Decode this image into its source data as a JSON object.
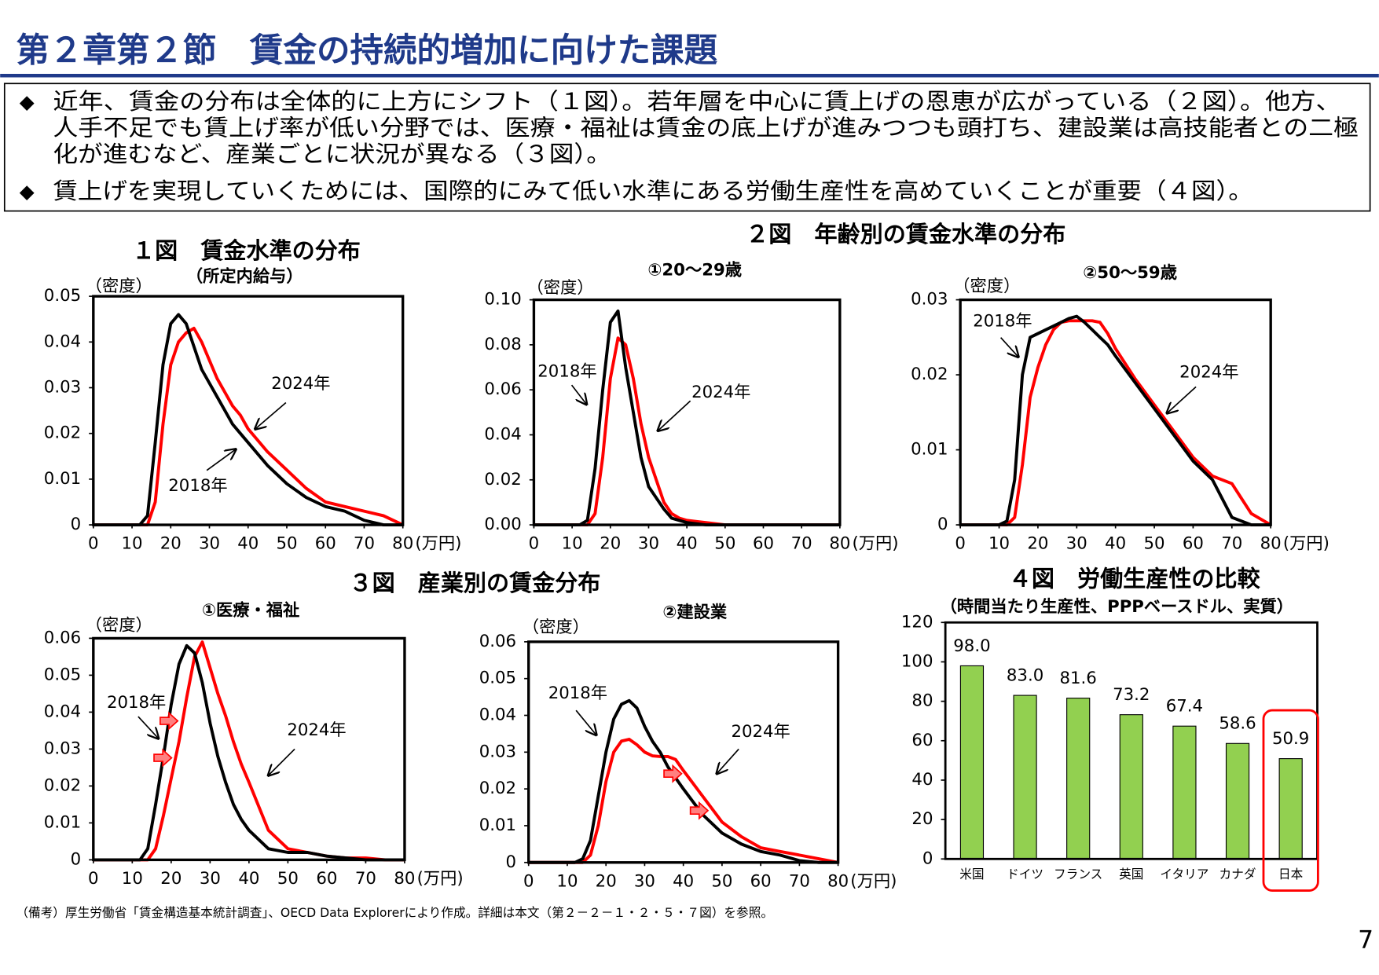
{
  "header": {
    "title": "第２章第２節　賃金の持続的増加に向けた課題"
  },
  "bullets": [
    [
      "近年、賃金の分布は全体的に上方にシフト（１図）。若年層を中心に賃上げの恩恵が広がっている（２図）。他方、",
      "人手不足でも賃上げ率が低い分野では、医療・福祉は賃金の底上げが進みつつも頭打ち、建設業は高技能者との二極",
      "化が進むなど、産業ごとに状況が異なる（３図）。"
    ],
    [
      "賃上げを実現していくためには、国際的にみて低い水準にある労働生産性を高めていくことが重要（４図）。"
    ]
  ],
  "figure_titles": [
    "２図　年齢別の賃金水準の分布",
    "３図　産業別の賃金分布"
  ],
  "chart_data": [
    {
      "type": "line",
      "title": "１図　賃金水準の分布",
      "subtitle": "（所定内給与）",
      "ylabel": "（密度）",
      "xlabel": "(万円)",
      "x": [
        0,
        10,
        12,
        14,
        16,
        18,
        20,
        22,
        24,
        26,
        28,
        30,
        32,
        34,
        36,
        38,
        40,
        45,
        50,
        55,
        60,
        65,
        70,
        75,
        80
      ],
      "xlim": [
        0,
        80
      ],
      "xticks": [
        0,
        10,
        20,
        30,
        40,
        50,
        60,
        70,
        80
      ],
      "ylim": [
        0,
        0.05
      ],
      "yticks": [
        0,
        0.01,
        0.02,
        0.03,
        0.04,
        0.05
      ],
      "series": [
        {
          "name": "2018年",
          "color": "#000000",
          "values": [
            0,
            0,
            0,
            0.002,
            0.018,
            0.035,
            0.044,
            0.046,
            0.044,
            0.039,
            0.034,
            0.031,
            0.028,
            0.025,
            0.022,
            0.02,
            0.018,
            0.013,
            0.009,
            0.006,
            0.004,
            0.003,
            0.001,
            0,
            0
          ]
        },
        {
          "name": "2024年",
          "color": "#ff0000",
          "values": [
            0,
            0,
            0,
            0,
            0.005,
            0.022,
            0.035,
            0.04,
            0.042,
            0.043,
            0.04,
            0.036,
            0.032,
            0.029,
            0.026,
            0.024,
            0.021,
            0.016,
            0.012,
            0.008,
            0.005,
            0.004,
            0.003,
            0.002,
            0
          ]
        }
      ]
    },
    {
      "type": "line",
      "title": "①20～29歳",
      "ylabel": "（密度）",
      "xlabel": "(万円)",
      "x": [
        0,
        10,
        12,
        14,
        16,
        18,
        20,
        22,
        24,
        26,
        28,
        30,
        32,
        34,
        36,
        38,
        40,
        45,
        50,
        55,
        60,
        65,
        70,
        75,
        80
      ],
      "xlim": [
        0,
        80
      ],
      "xticks": [
        0,
        10,
        20,
        30,
        40,
        50,
        60,
        70,
        80
      ],
      "ylim": [
        0,
        0.1
      ],
      "yticks": [
        {
          "value": 0,
          "label": "0.00"
        },
        0.02,
        0.04,
        0.06,
        0.08,
        {
          "value": 0.1,
          "label": "0.10"
        }
      ],
      "series": [
        {
          "name": "2018年",
          "color": "#000000",
          "values": [
            0,
            0,
            0,
            0.002,
            0.025,
            0.06,
            0.09,
            0.095,
            0.07,
            0.05,
            0.03,
            0.017,
            0.012,
            0.007,
            0.003,
            0.002,
            0.001,
            0,
            0,
            0,
            0,
            0,
            0,
            0,
            0
          ]
        },
        {
          "name": "2024年",
          "color": "#ff0000",
          "values": [
            0,
            0,
            0,
            0,
            0.005,
            0.03,
            0.065,
            0.083,
            0.08,
            0.065,
            0.045,
            0.03,
            0.02,
            0.01,
            0.005,
            0.003,
            0.002,
            0.001,
            0,
            0,
            0,
            0,
            0,
            0,
            0
          ]
        }
      ]
    },
    {
      "type": "line",
      "title": "②50～59歳",
      "ylabel": "（密度）",
      "xlabel": "(万円)",
      "x": [
        0,
        10,
        12,
        14,
        16,
        18,
        20,
        22,
        24,
        26,
        28,
        30,
        32,
        34,
        36,
        38,
        40,
        45,
        50,
        55,
        60,
        65,
        70,
        75,
        80
      ],
      "xlim": [
        0,
        80
      ],
      "xticks": [
        0,
        10,
        20,
        30,
        40,
        50,
        60,
        70,
        80
      ],
      "ylim": [
        0,
        0.03
      ],
      "yticks": [
        0,
        0.01,
        0.02,
        0.03
      ],
      "series": [
        {
          "name": "2018年",
          "color": "#000000",
          "values": [
            0,
            0,
            0.0005,
            0.006,
            0.02,
            0.025,
            0.0255,
            0.026,
            0.0265,
            0.027,
            0.0275,
            0.0278,
            0.027,
            0.026,
            0.025,
            0.024,
            0.0225,
            0.019,
            0.0155,
            0.012,
            0.0085,
            0.006,
            0.001,
            0,
            0
          ]
        },
        {
          "name": "2024年",
          "color": "#ff0000",
          "values": [
            0,
            0,
            0,
            0.001,
            0.008,
            0.017,
            0.021,
            0.024,
            0.026,
            0.027,
            0.0272,
            0.0272,
            0.0272,
            0.0272,
            0.027,
            0.0255,
            0.0235,
            0.0195,
            0.016,
            0.0125,
            0.009,
            0.0065,
            0.0055,
            0.0015,
            0
          ]
        }
      ]
    },
    {
      "type": "line",
      "title": "①医療・福祉",
      "ylabel": "（密度）",
      "xlabel": "(万円)",
      "x": [
        0,
        10,
        12,
        14,
        16,
        18,
        20,
        22,
        24,
        26,
        28,
        30,
        32,
        34,
        36,
        38,
        40,
        45,
        50,
        55,
        60,
        65,
        70,
        75,
        80
      ],
      "xlim": [
        0,
        80
      ],
      "xticks": [
        0,
        10,
        20,
        30,
        40,
        50,
        60,
        70,
        80
      ],
      "ylim": [
        0,
        0.06
      ],
      "yticks": [
        0,
        0.01,
        0.02,
        0.03,
        0.04,
        0.05,
        0.06
      ],
      "series": [
        {
          "name": "2018年",
          "color": "#000000",
          "values": [
            0,
            0,
            0,
            0.003,
            0.015,
            0.028,
            0.042,
            0.053,
            0.058,
            0.056,
            0.048,
            0.037,
            0.028,
            0.021,
            0.015,
            0.011,
            0.008,
            0.003,
            0.002,
            0.002,
            0.001,
            0.0005,
            0,
            0,
            0
          ]
        },
        {
          "name": "2024年",
          "color": "#ff0000",
          "values": [
            0,
            0,
            0,
            0,
            0.003,
            0.012,
            0.022,
            0.032,
            0.044,
            0.055,
            0.059,
            0.052,
            0.045,
            0.039,
            0.032,
            0.026,
            0.021,
            0.008,
            0.003,
            0.002,
            0.001,
            0.0005,
            0.0005,
            0,
            0
          ]
        }
      ]
    },
    {
      "type": "line",
      "title": "②建設業",
      "ylabel": "（密度）",
      "xlabel": "(万円)",
      "x": [
        0,
        10,
        12,
        14,
        16,
        18,
        20,
        22,
        24,
        26,
        28,
        30,
        32,
        34,
        36,
        38,
        40,
        45,
        50,
        55,
        60,
        65,
        70,
        75,
        80
      ],
      "xlim": [
        0,
        80
      ],
      "xticks": [
        0,
        10,
        20,
        30,
        40,
        50,
        60,
        70,
        80
      ],
      "ylim": [
        0,
        0.06
      ],
      "yticks": [
        0,
        0.01,
        0.02,
        0.03,
        0.04,
        0.05,
        0.06
      ],
      "series": [
        {
          "name": "2018年",
          "color": "#000000",
          "values": [
            0,
            0,
            0,
            0.001,
            0.006,
            0.018,
            0.03,
            0.039,
            0.043,
            0.044,
            0.042,
            0.037,
            0.033,
            0.03,
            0.026,
            0.023,
            0.02,
            0.013,
            0.008,
            0.005,
            0.003,
            0.002,
            0.0005,
            0,
            0
          ]
        },
        {
          "name": "2024年",
          "color": "#ff0000",
          "values": [
            0,
            0,
            0,
            0,
            0.002,
            0.01,
            0.022,
            0.03,
            0.033,
            0.0335,
            0.032,
            0.03,
            0.029,
            0.0288,
            0.0288,
            0.028,
            0.025,
            0.018,
            0.011,
            0.007,
            0.004,
            0.003,
            0.002,
            0.001,
            0
          ]
        }
      ]
    },
    {
      "type": "bar",
      "title": "４図　労働生産性の比較",
      "subtitle": "（時間当たり生産性、PPPベースドル、実質）",
      "categories": [
        "米国",
        "ドイツ",
        "フランス",
        "英国",
        "イタリア",
        "カナダ",
        "日本"
      ],
      "values": [
        98,
        83,
        81.6,
        73.2,
        67.4,
        58.6,
        50.9
      ],
      "value_labels": [
        "98.0",
        "83.0",
        "81.6",
        "73.2",
        "67.4",
        "58.6",
        "50.9"
      ],
      "color": "#92d050",
      "ylim": [
        0,
        120
      ],
      "yticks": [
        0,
        20,
        40,
        60,
        80,
        100,
        120
      ]
    }
  ],
  "footnote": "（備考）厚生労働省「賃金構造基本統計調査」、OECD Data Explorerにより作成。詳細は本文（第２－２－１・２・５・７図）を参照。",
  "page_number": "7"
}
